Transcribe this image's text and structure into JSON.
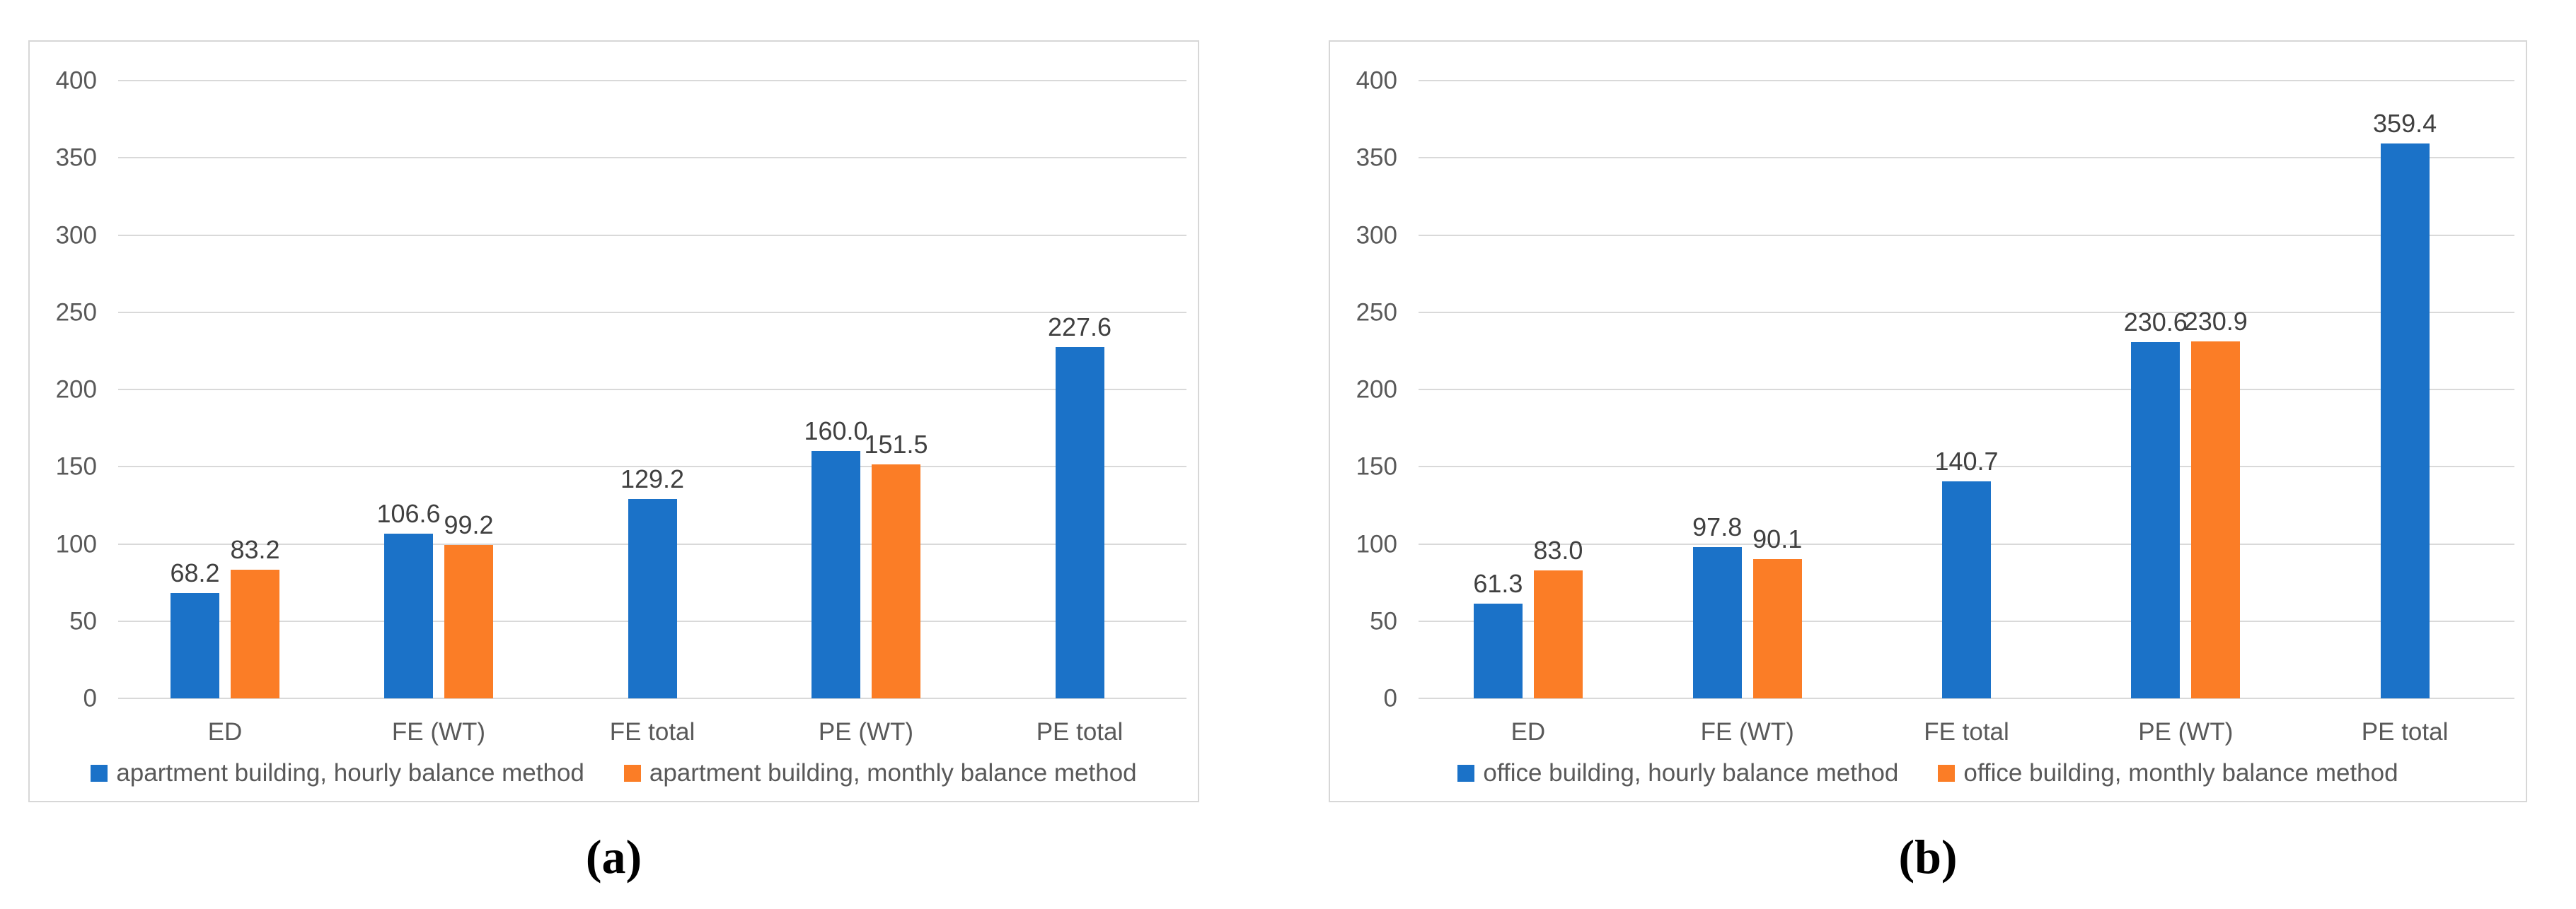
{
  "page": {
    "background": "#ffffff"
  },
  "colors": {
    "series_blue": "#1B72C8",
    "series_orange": "#FB7D26",
    "gridline": "#D9D9D9",
    "panel_border": "#D7D7D7",
    "axis_text": "#595959",
    "value_text": "#404040"
  },
  "chart_data": [
    {
      "type": "bar",
      "caption": "(a)",
      "title": "",
      "xlabel": "",
      "ylabel": "",
      "categories": [
        "ED",
        "FE (WT)",
        "FE total",
        "PE (WT)",
        "PE total"
      ],
      "series": [
        {
          "name": "apartment building, hourly balance method",
          "color": "#1B72C8",
          "values": [
            68.2,
            106.6,
            129.2,
            160.0,
            227.6
          ]
        },
        {
          "name": "apartment building, monthly balance method",
          "color": "#FB7D26",
          "values": [
            83.2,
            99.2,
            null,
            151.5,
            null
          ]
        }
      ],
      "value_labels": [
        "68.2",
        "83.2",
        "106.6",
        "99.2",
        "129.2",
        "160.0",
        "151.5",
        "227.6"
      ],
      "ylim": [
        0,
        400
      ],
      "yticks": [
        0,
        50,
        100,
        150,
        200,
        250,
        300,
        350,
        400
      ],
      "grid": true,
      "legend_position": "bottom-center"
    },
    {
      "type": "bar",
      "caption": "(b)",
      "title": "",
      "xlabel": "",
      "ylabel": "",
      "categories": [
        "ED",
        "FE (WT)",
        "FE total",
        "PE (WT)",
        "PE total"
      ],
      "series": [
        {
          "name": "office building, hourly balance method",
          "color": "#1B72C8",
          "values": [
            61.3,
            97.8,
            140.7,
            230.6,
            359.4
          ]
        },
        {
          "name": "office building, monthly balance method",
          "color": "#FB7D26",
          "values": [
            83.0,
            90.1,
            null,
            230.9,
            null
          ]
        }
      ],
      "value_labels": [
        "61.3",
        "83.0",
        "97.8",
        "90.1",
        "140.7",
        "230.6",
        "230.9",
        "359.4"
      ],
      "ylim": [
        0,
        400
      ],
      "yticks": [
        0,
        50,
        100,
        150,
        200,
        250,
        300,
        350,
        400
      ],
      "grid": true,
      "legend_position": "bottom-center"
    }
  ]
}
